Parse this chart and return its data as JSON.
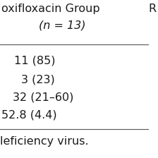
{
  "title_line1": "oxifloxacin Group",
  "title_line2": "(n = 13)",
  "rows": [
    "11 (85)",
    "  3 (23)",
    "32 (21–60)",
    "52.8 (4.4)"
  ],
  "footer": "leficiency virus.",
  "bg_color": "#ffffff",
  "text_color": "#1a1a1a",
  "title_fontsize": 11.5,
  "data_fontsize": 11.5,
  "footer_fontsize": 11.5,
  "line_color": "#555555",
  "right_col_stub": "R"
}
